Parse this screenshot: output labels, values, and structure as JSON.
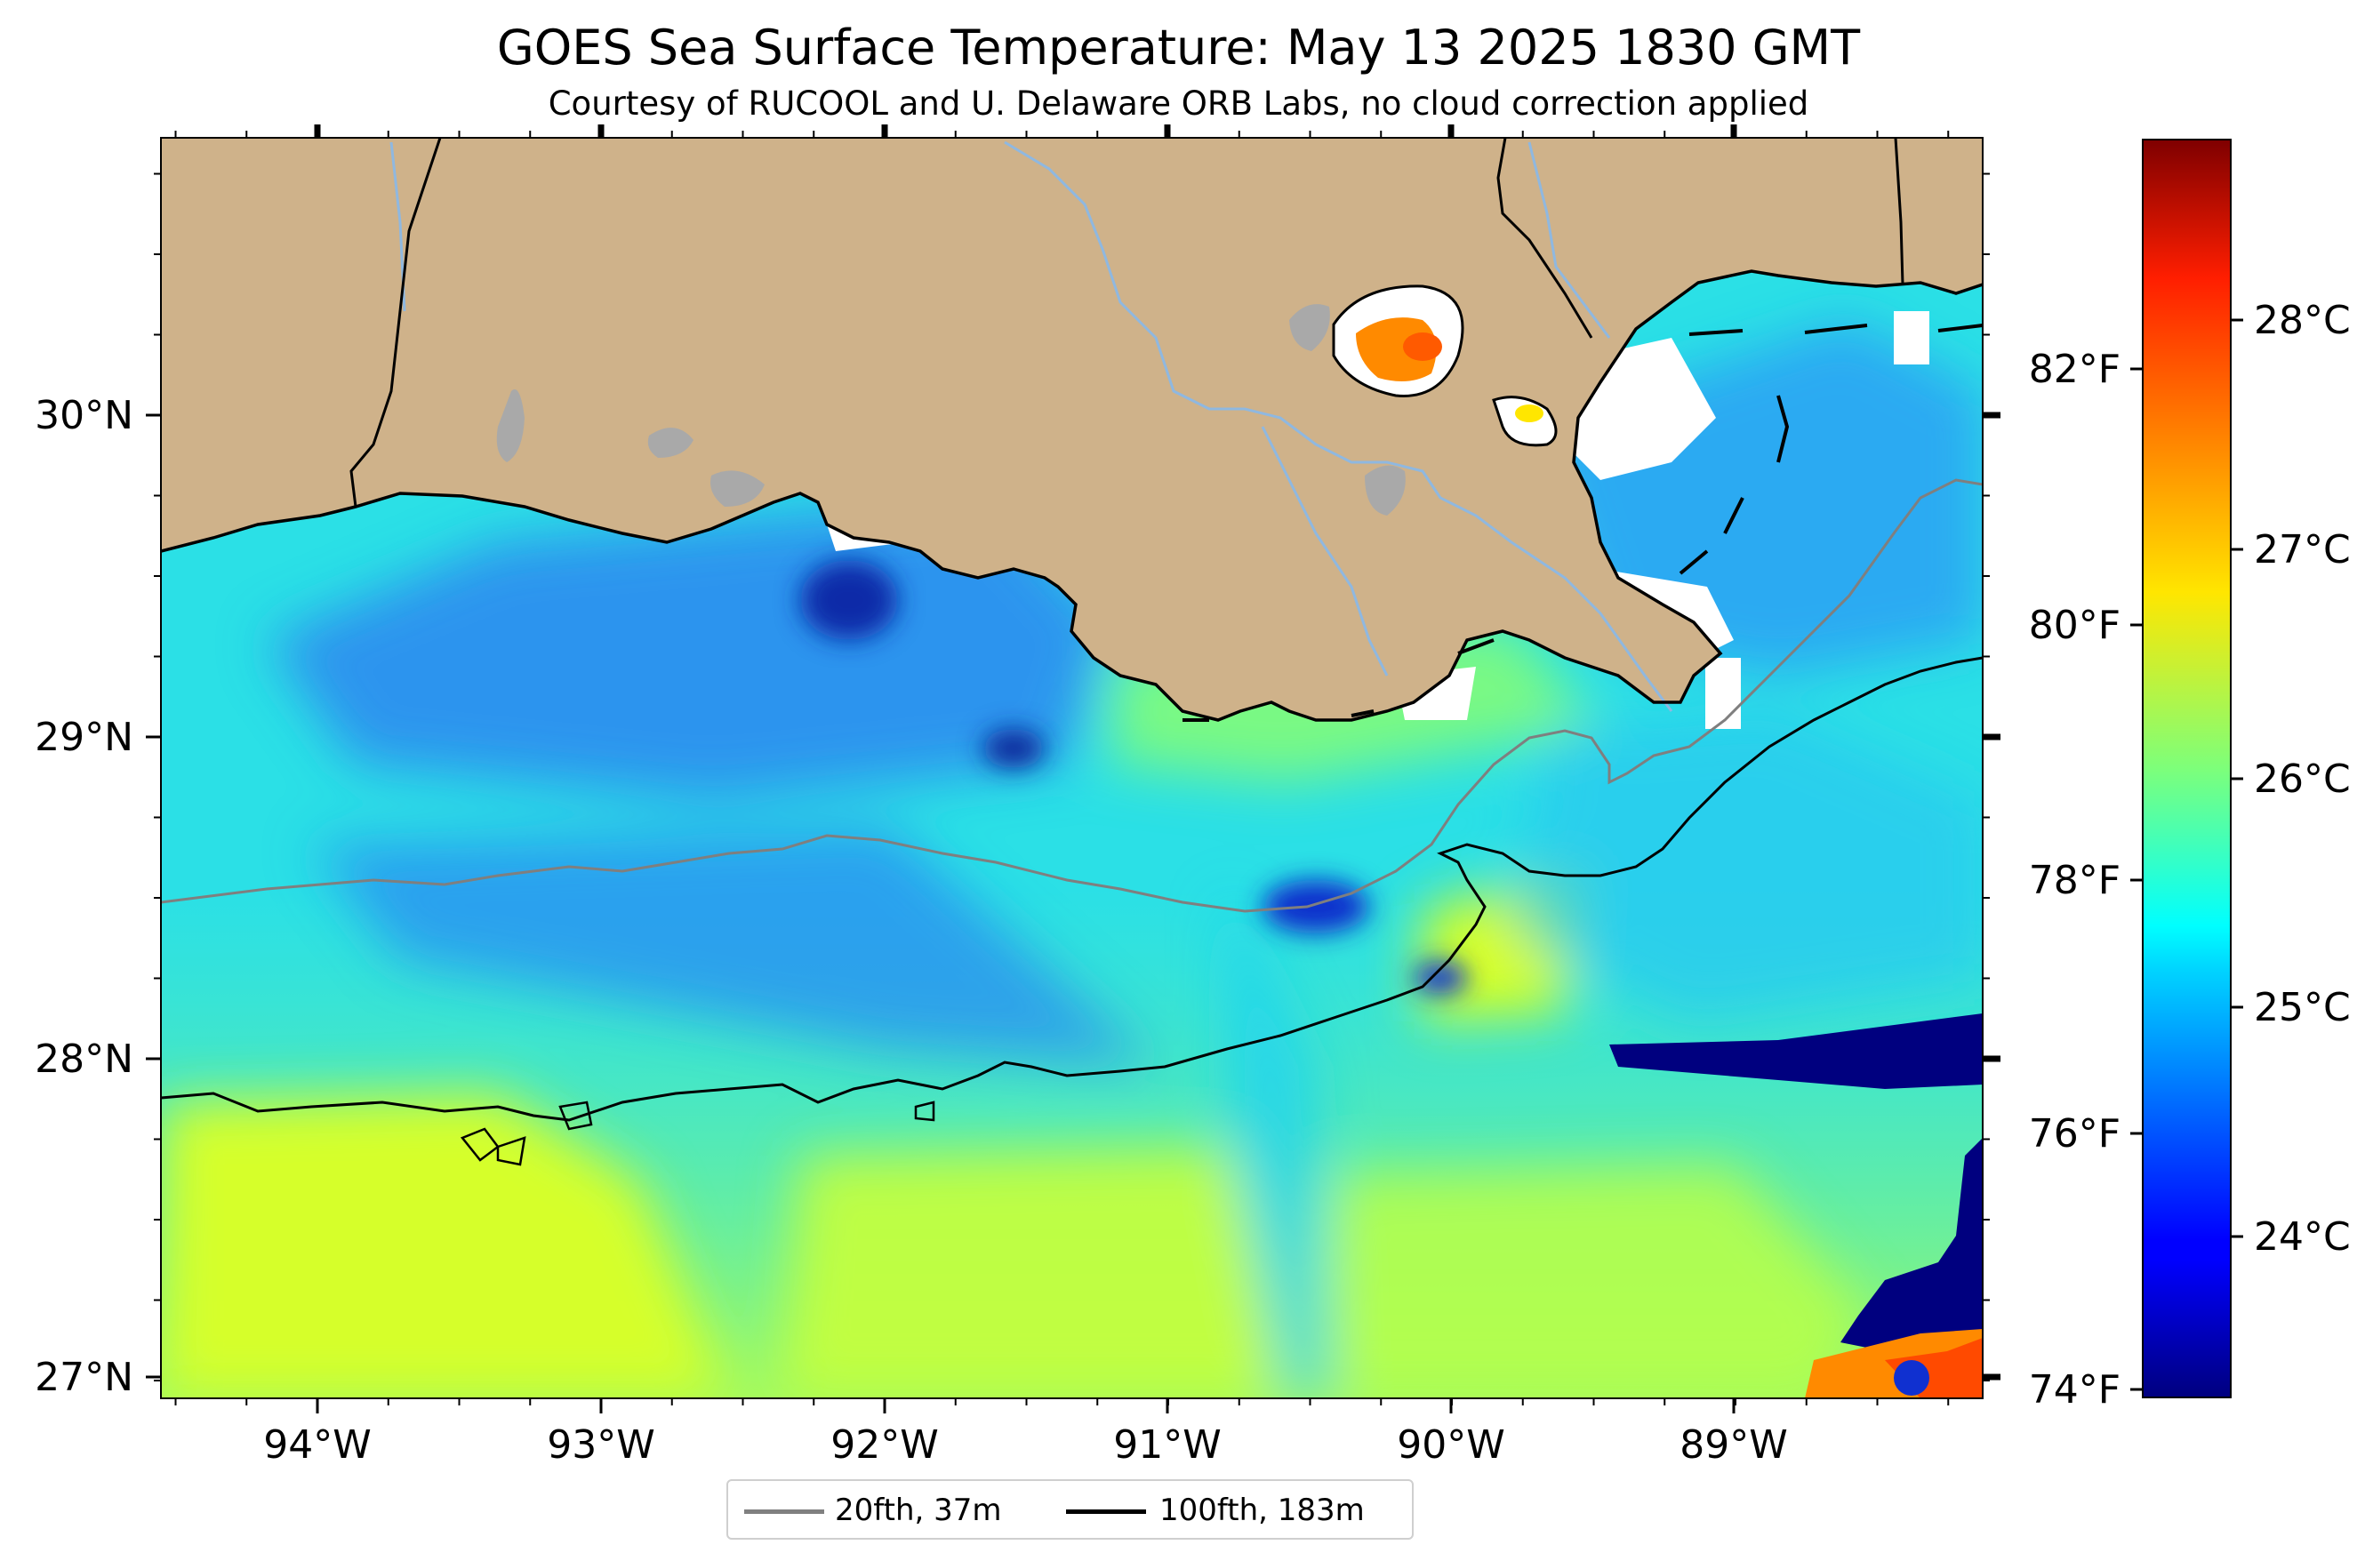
{
  "title": "GOES Sea Surface Temperature: May 13 2025 1830 GMT",
  "subtitle": "Courtesy of RUCOOL and U. Delaware ORB Labs, no cloud correction applied",
  "map": {
    "lon_ticks": [
      "94°W",
      "93°W",
      "92°W",
      "91°W",
      "90°W",
      "89°W"
    ],
    "lat_ticks": [
      "30°N",
      "29°N",
      "28°N",
      "27°N"
    ],
    "colors": {
      "land": "#cfb28a",
      "lakes": "#a9a9a9",
      "rivers": "#8fb8e0",
      "no_data": "#ffffff"
    }
  },
  "colorbar": {
    "f_ticks": [
      "82°F",
      "80°F",
      "78°F",
      "76°F",
      "74°F"
    ],
    "c_ticks": [
      "28°C",
      "27°C",
      "26°C",
      "25°C",
      "24°C"
    ],
    "colormap": "jet"
  },
  "legend": {
    "items": [
      {
        "label": "20fth, 37m",
        "color": "#808080"
      },
      {
        "label": "100fth, 183m",
        "color": "#000000"
      }
    ]
  }
}
